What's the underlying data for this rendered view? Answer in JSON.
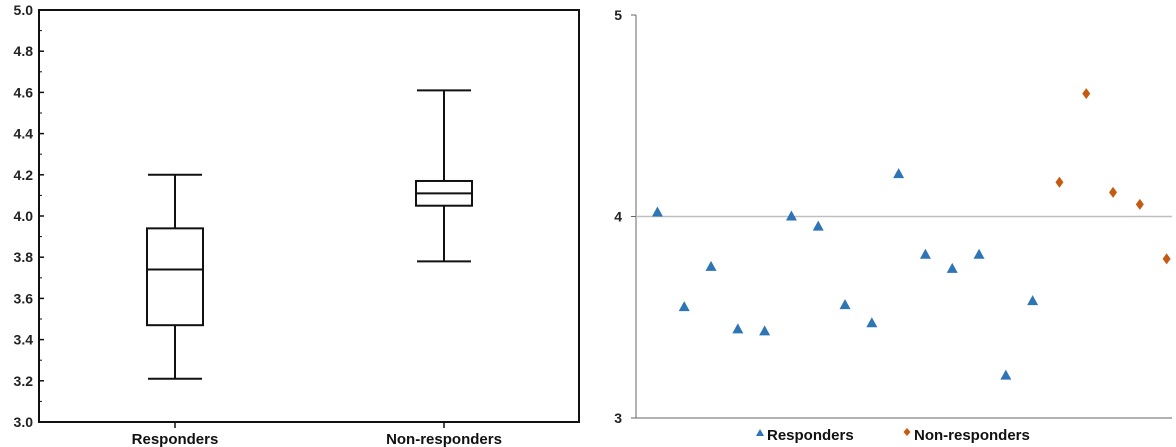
{
  "chart_data": [
    {
      "type": "box",
      "ylim": [
        3.0,
        5.0
      ],
      "y_ticks": [
        "3.0",
        "3.2",
        "3.4",
        "3.6",
        "3.8",
        "4.0",
        "4.2",
        "4.4",
        "4.6",
        "4.8",
        "5.0"
      ],
      "categories": [
        "Responders",
        "Non-responders"
      ],
      "boxes": [
        {
          "category": "Responders",
          "min": 3.21,
          "q1": 3.47,
          "median": 3.74,
          "q3": 3.94,
          "max": 4.2
        },
        {
          "category": "Non-responders",
          "min": 3.78,
          "q1": 4.05,
          "median": 4.11,
          "q3": 4.17,
          "max": 4.61
        }
      ],
      "grid": false,
      "color": "#111111"
    },
    {
      "type": "scatter",
      "ylim": [
        3,
        5
      ],
      "y_ticks": [
        "3",
        "4",
        "5"
      ],
      "reference_line": 4,
      "legend": "bottom",
      "series": [
        {
          "name": "Responders",
          "marker": "triangle",
          "color": "#2e75b6",
          "values": [
            4.02,
            3.55,
            3.75,
            3.44,
            3.43,
            4.0,
            3.95,
            3.56,
            3.47,
            4.21,
            3.81,
            3.74,
            3.81,
            3.21,
            3.58
          ]
        },
        {
          "name": "Non-responders",
          "marker": "diamond",
          "color": "#c55a11",
          "values": [
            4.17,
            4.61,
            4.12,
            4.06,
            3.79
          ]
        }
      ]
    }
  ]
}
